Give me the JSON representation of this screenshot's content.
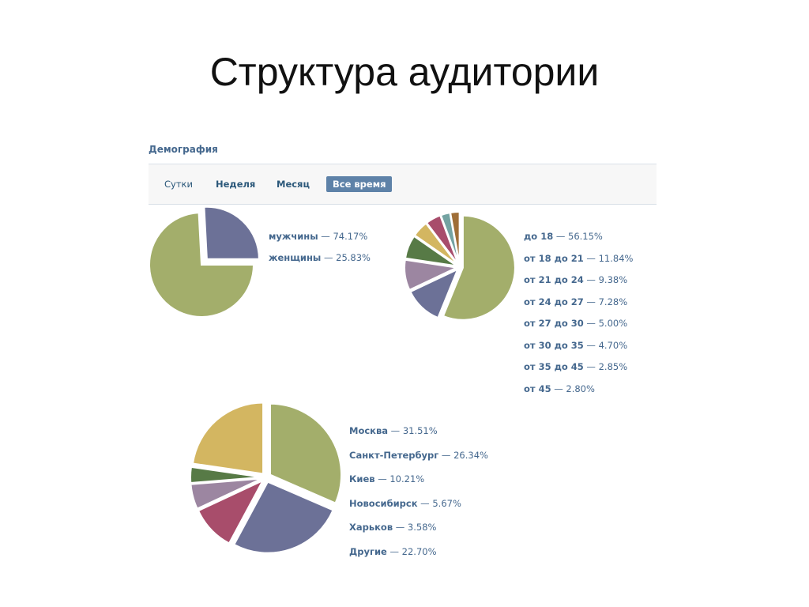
{
  "slide": {
    "title": "Структура аудитории"
  },
  "section_title": "Демография",
  "tabs": [
    {
      "label": "Сутки",
      "active": false
    },
    {
      "label": "Неделя",
      "active": false
    },
    {
      "label": "Месяц",
      "active": false
    },
    {
      "label": "Все время",
      "active": true
    }
  ],
  "chart_data": [
    {
      "type": "pie",
      "title": "",
      "slices": [
        {
          "label": "мужчины",
          "value": 74.17,
          "value_text": "— 74.17%",
          "color": "#a3ae6b"
        },
        {
          "label": "женщины",
          "value": 25.83,
          "value_text": "— 25.83%",
          "color": "#6c7197"
        }
      ],
      "legend": "right"
    },
    {
      "type": "pie",
      "title": "",
      "slices": [
        {
          "label": "до 18",
          "value": 56.15,
          "value_text": "— 56.15%",
          "color": "#a3ae6b"
        },
        {
          "label": "от 18 до 21",
          "value": 11.84,
          "value_text": "— 11.84%",
          "color": "#6c7197"
        },
        {
          "label": "от 21 до 24",
          "value": 9.38,
          "value_text": "— 9.38%",
          "color": "#9c86a1"
        },
        {
          "label": "от 24 до 27",
          "value": 7.28,
          "value_text": "— 7.28%",
          "color": "#577a46"
        },
        {
          "label": "от 27 до 30",
          "value": 5.0,
          "value_text": "— 5.00%",
          "color": "#d3b661"
        },
        {
          "label": "от 30 до 35",
          "value": 4.7,
          "value_text": "— 4.70%",
          "color": "#a84d6b"
        },
        {
          "label": "от 35 до 45",
          "value": 2.85,
          "value_text": "— 2.85%",
          "color": "#74a3a2"
        },
        {
          "label": "от 45",
          "value": 2.8,
          "value_text": "— 2.80%",
          "color": "#9f6e37"
        }
      ],
      "legend": "right"
    },
    {
      "type": "pie",
      "title": "",
      "slices": [
        {
          "label": "Москва",
          "value": 31.51,
          "value_text": "— 31.51%",
          "color": "#a3ae6b"
        },
        {
          "label": "Санкт-Петербург",
          "value": 26.34,
          "value_text": "— 26.34%",
          "color": "#6c7197"
        },
        {
          "label": "Киев",
          "value": 10.21,
          "value_text": "— 10.21%",
          "color": "#a84d6b"
        },
        {
          "label": "Новосибирск",
          "value": 5.67,
          "value_text": "— 5.67%",
          "color": "#9c86a1"
        },
        {
          "label": "Харьков",
          "value": 3.58,
          "value_text": "— 3.58%",
          "color": "#577a46"
        },
        {
          "label": "Другие",
          "value": 22.7,
          "value_text": "— 22.70%",
          "color": "#d3b661"
        }
      ],
      "legend": "right"
    }
  ]
}
